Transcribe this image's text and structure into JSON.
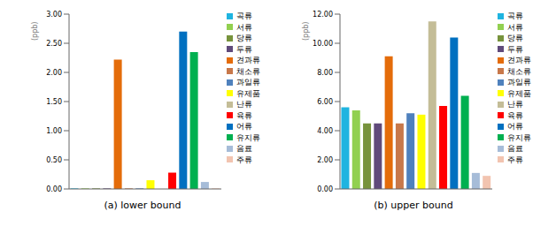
{
  "chart_data": [
    {
      "type": "bar",
      "title": "(a) lower bound",
      "y_label": "(ppb)",
      "categories": [
        "곡류",
        "서류",
        "당류",
        "두류",
        "견과류",
        "채소류",
        "과일류",
        "유제품",
        "난류",
        "육류",
        "어류",
        "유지류",
        "음료",
        "주류"
      ],
      "values": [
        0.01,
        0.01,
        0.01,
        0.01,
        2.22,
        0.01,
        0.01,
        0.15,
        0,
        0.28,
        2.7,
        2.35,
        0.12,
        0.01
      ],
      "colors": [
        "#1fb4e0",
        "#92d050",
        "#77933c",
        "#604a7b",
        "#e46c0a",
        "#c8784a",
        "#4f81bd",
        "#ffff00",
        "#c4bd97",
        "#ff0000",
        "#0070c0",
        "#00b050",
        "#a6bcd8",
        "#f2c4b0"
      ],
      "ylim": [
        0,
        3
      ],
      "yticks": [
        {
          "value": 0,
          "label": "0.00"
        },
        {
          "value": 0.5,
          "label": "0.50"
        },
        {
          "value": 1,
          "label": "1.00"
        },
        {
          "value": 1.5,
          "label": "1.50"
        },
        {
          "value": 2,
          "label": "2.00"
        },
        {
          "value": 2.5,
          "label": "2.50"
        },
        {
          "value": 3,
          "label": "3.00"
        }
      ],
      "grid": false,
      "legend": "right",
      "tick_labels": "y"
    },
    {
      "type": "bar",
      "title": "(b) upper bound",
      "y_label": "(ppb)",
      "categories": [
        "곡류",
        "서류",
        "당류",
        "두류",
        "견과류",
        "채소류",
        "과일류",
        "유제품",
        "난류",
        "육류",
        "어류",
        "유지류",
        "음료",
        "주류"
      ],
      "values": [
        5.6,
        5.4,
        4.5,
        4.5,
        9.1,
        4.5,
        5.2,
        5.1,
        11.5,
        5.7,
        10.4,
        6.4,
        1.1,
        0.9
      ],
      "colors": [
        "#1fb4e0",
        "#92d050",
        "#77933c",
        "#604a7b",
        "#e46c0a",
        "#c8784a",
        "#4f81bd",
        "#ffff00",
        "#c4bd97",
        "#ff0000",
        "#0070c0",
        "#00b050",
        "#a6bcd8",
        "#f2c4b0"
      ],
      "ylim": [
        0,
        12
      ],
      "yticks": [
        {
          "value": 0,
          "label": "0.00"
        },
        {
          "value": 2,
          "label": "2.00"
        },
        {
          "value": 4,
          "label": "4.00"
        },
        {
          "value": 6,
          "label": "6.00"
        },
        {
          "value": 8,
          "label": "8.00"
        },
        {
          "value": 10,
          "label": "10.00"
        },
        {
          "value": 12,
          "label": "12.00"
        }
      ],
      "grid": false,
      "legend": "right",
      "tick_labels": "y"
    }
  ]
}
